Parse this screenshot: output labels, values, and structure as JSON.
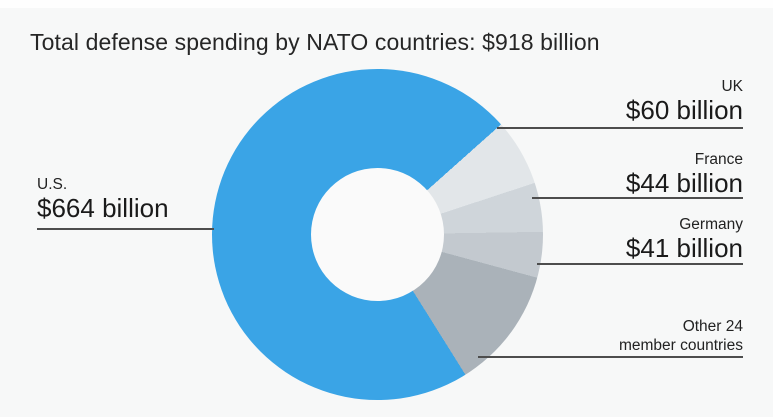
{
  "title": "Total defense spending by NATO countries: $918 billion",
  "chart_data": {
    "type": "pie",
    "subtype": "donut",
    "title": "Total defense spending by NATO countries: $918 billion",
    "total": 918,
    "total_label": "$918 billion",
    "start_angle_deg": 48.3,
    "draw_order_clockwise": [
      1,
      2,
      3,
      4,
      0
    ],
    "inner_radius_ratio": 0.4,
    "legend": "none",
    "labeling": "callouts with leader lines",
    "segments": [
      {
        "name": "U.S.",
        "value": 664,
        "amount_label": "$664 billion",
        "color": "#3aa4e6"
      },
      {
        "name": "UK",
        "value": 60,
        "amount_label": "$60 billion",
        "color": "#e2e6e9"
      },
      {
        "name": "France",
        "value": 44,
        "amount_label": "$44 billion",
        "color": "#cfd5da"
      },
      {
        "name": "Germany",
        "value": 41,
        "amount_label": "$41 billion",
        "color": "#c3c9cf"
      },
      {
        "name": "Other 24 member countries",
        "name_line1": "Other 24",
        "name_line2": "member countries",
        "value": 109,
        "color": "#aab2b9"
      }
    ]
  },
  "colors": {
    "background": "#f7f8f8",
    "top_strip": "#fefefe",
    "leader_line": "#4d4d4d",
    "title_text": "#262626",
    "label_name_text": "#222222",
    "label_amount_text": "#1a1a1a",
    "donut_hole": "#fafafa",
    "accent_blue": "#3aa4e6"
  }
}
